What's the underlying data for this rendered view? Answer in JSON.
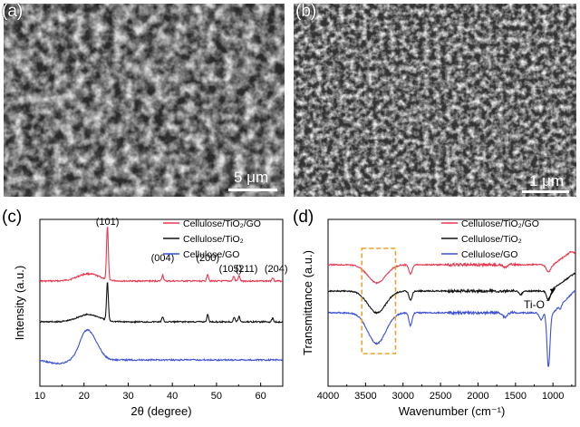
{
  "panels": {
    "a": {
      "letter": "(a)",
      "scale": "5 μm"
    },
    "b": {
      "letter": "(b)",
      "scale": "1 μm"
    },
    "c": {
      "letter": "(c)"
    },
    "d": {
      "letter": "(d)"
    }
  },
  "chart_data": [
    {
      "type": "line",
      "xlabel": "2θ (degree)",
      "ylabel": "Intensity (a.u.)",
      "xlim": [
        10,
        65
      ],
      "xticks": [
        "10",
        "20",
        "30",
        "40",
        "50",
        "60"
      ],
      "legend_position": "top-right",
      "series": [
        {
          "name": "Cellulose/TiO₂/GO",
          "color": "#e8384f",
          "peaks": [
            [
              25.3,
              "(101)"
            ],
            [
              37.8,
              "(004)"
            ],
            [
              48.0,
              "(200)"
            ],
            [
              53.9,
              "(105)"
            ],
            [
              55.1,
              "(211)"
            ],
            [
              62.7,
              "(204)"
            ]
          ]
        },
        {
          "name": "Cellulose/TiO₂",
          "color": "#111111",
          "peaks": [
            [
              25.3,
              ""
            ],
            [
              37.8,
              ""
            ],
            [
              48.0,
              ""
            ],
            [
              54.0,
              ""
            ],
            [
              55.1,
              ""
            ],
            [
              62.7,
              ""
            ]
          ]
        },
        {
          "name": "Cellulose/GO",
          "color": "#3b4fd8",
          "peaks": [
            [
              20.5,
              ""
            ]
          ]
        }
      ],
      "annotations": [
        "(101)",
        "(004)",
        "(200)",
        "(105)",
        "(211)",
        "(204)"
      ]
    },
    {
      "type": "line",
      "xlabel": "Wavenumber (cm⁻¹)",
      "ylabel": "Transmittance (a.u.)",
      "xlim": [
        4000,
        700
      ],
      "xticks": [
        "4000",
        "3500",
        "3000",
        "2500",
        "2000",
        "1500",
        "1000"
      ],
      "legend_position": "top-right",
      "series": [
        {
          "name": "Cellulose/TiO₂/GO",
          "color": "#e8384f"
        },
        {
          "name": "Cellulose/TiO₂",
          "color": "#111111"
        },
        {
          "name": "Cellulose/GO",
          "color": "#3b4fd8"
        }
      ],
      "annotations": [
        "Ti-O"
      ],
      "highlight_box": {
        "x_from": 3550,
        "x_to": 3100,
        "color": "#e8a020"
      }
    }
  ]
}
